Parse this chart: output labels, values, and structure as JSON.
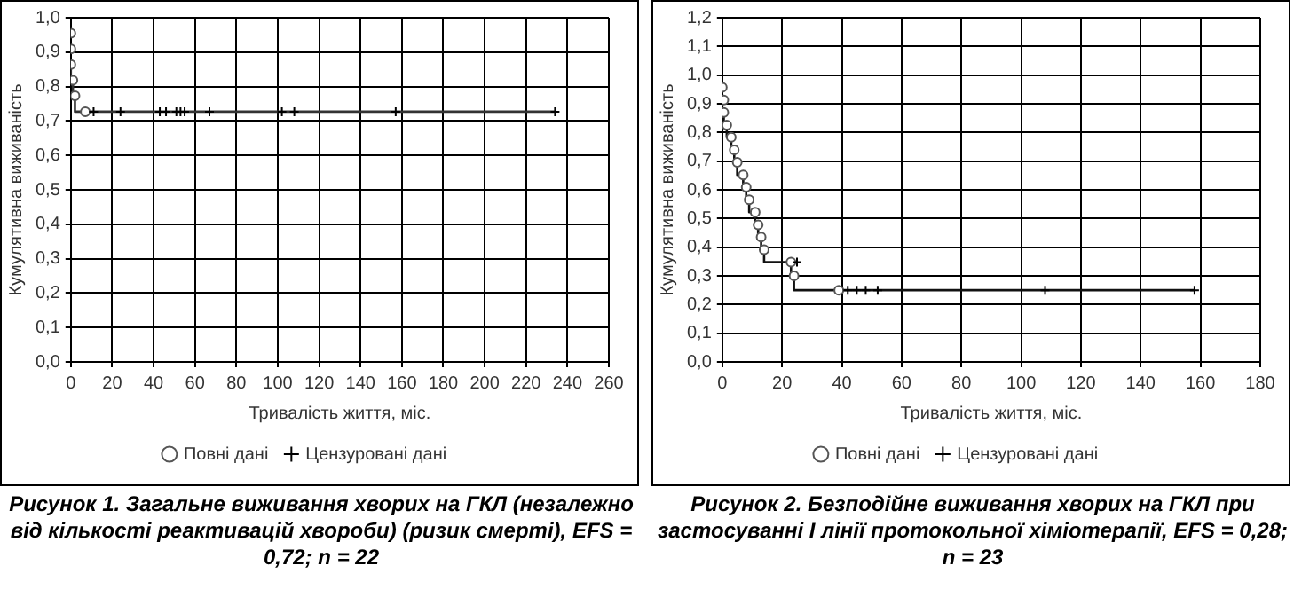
{
  "chart_data": [
    {
      "type": "step",
      "xlabel": "Тривалість життя, міс.",
      "ylabel": "Кумулятивна виживаність",
      "xlim": [
        0,
        260
      ],
      "xticks": [
        0,
        20,
        40,
        60,
        80,
        100,
        120,
        140,
        160,
        180,
        200,
        220,
        240,
        260
      ],
      "ylim": [
        0,
        1
      ],
      "yticks": [
        {
          "value": 0,
          "label": "0,0"
        },
        {
          "value": 0.1,
          "label": "0,1"
        },
        {
          "value": 0.2,
          "label": "0,2"
        },
        {
          "value": 0.3,
          "label": "0,3"
        },
        {
          "value": 0.4,
          "label": "0,4"
        },
        {
          "value": 0.5,
          "label": "0,5"
        },
        {
          "value": 0.6,
          "label": "0,6"
        },
        {
          "value": 0.7,
          "label": "0,7"
        },
        {
          "value": 0.8,
          "label": "0,8"
        },
        {
          "value": 0.9,
          "label": "0,9"
        },
        {
          "value": 1,
          "label": "1,0"
        }
      ],
      "grid": true,
      "legend": "bottom",
      "annotations": [
        "Рисунок 1. Загальне виживання хворих на ГКЛ (незалежно від кількості реактивацій хвороби) (ризик смерті), EFS = 0,72; n = 22"
      ],
      "series": [
        {
          "color": "#333333",
          "marker": "none",
          "x": [
            0,
            1,
            2,
            7,
            234
          ],
          "values": [
            0.864,
            0.818,
            0.773,
            0.727,
            0.727
          ]
        },
        {
          "type": "scatter",
          "name": "Повні дані",
          "color": "#555555",
          "marker": "circle",
          "x": [
            0,
            0,
            0,
            1,
            2,
            7
          ],
          "values": [
            0.955,
            0.909,
            0.864,
            0.818,
            0.773,
            0.727
          ]
        },
        {
          "type": "scatter",
          "name": "Цензуровані дані",
          "color": "#000000",
          "marker": "cross",
          "x": [
            11,
            24,
            43,
            46,
            51,
            53,
            55,
            67,
            102,
            108,
            157,
            234
          ],
          "values": [
            0.727,
            0.727,
            0.727,
            0.727,
            0.727,
            0.727,
            0.727,
            0.727,
            0.727,
            0.727,
            0.727,
            0.727
          ]
        }
      ]
    },
    {
      "type": "step",
      "xlabel": "Тривалість життя, міс.",
      "ylabel": "Кумулятивна виживаність",
      "xlim": [
        0,
        180
      ],
      "xticks": [
        0,
        20,
        40,
        60,
        80,
        100,
        120,
        140,
        160,
        180
      ],
      "ylim": [
        0,
        1.2
      ],
      "yticks": [
        {
          "value": 0,
          "label": "0,0"
        },
        {
          "value": 0.1,
          "label": "0,1"
        },
        {
          "value": 0.2,
          "label": "0,2"
        },
        {
          "value": 0.3,
          "label": "0,3"
        },
        {
          "value": 0.4,
          "label": "0,4"
        },
        {
          "value": 0.5,
          "label": "0,5"
        },
        {
          "value": 0.6,
          "label": "0,6"
        },
        {
          "value": 0.7,
          "label": "0,7"
        },
        {
          "value": 0.8,
          "label": "0,8"
        },
        {
          "value": 0.9,
          "label": "0,9"
        },
        {
          "value": 1,
          "label": "1,0"
        },
        {
          "value": 1.1,
          "label": "1,1"
        },
        {
          "value": 1.2,
          "label": "1,2"
        }
      ],
      "grid": true,
      "legend": "bottom",
      "annotations": [
        "Рисунок 2. Безподійне виживання хворих на ГКЛ при застосуванні І лінії протокольної хіміотерапії, EFS = 0,28; n = 23"
      ],
      "series": [
        {
          "color": "#111111",
          "marker": "none",
          "x": [
            0,
            0.5,
            1.5,
            3,
            4,
            5,
            7,
            8,
            9,
            11,
            12,
            13,
            14,
            23,
            24,
            39,
            158
          ],
          "values": [
            0.87,
            0.87,
            0.826,
            0.783,
            0.739,
            0.696,
            0.652,
            0.609,
            0.565,
            0.522,
            0.478,
            0.435,
            0.391,
            0.348,
            0.3,
            0.25,
            0.25
          ]
        },
        {
          "type": "scatter",
          "name": "Повні дані",
          "color": "#555555",
          "marker": "circle",
          "x": [
            0,
            0.5,
            0.5,
            1.5,
            3,
            4,
            5,
            7,
            8,
            9,
            11,
            12,
            13,
            14,
            23,
            24,
            39
          ],
          "values": [
            0.957,
            0.913,
            0.87,
            0.826,
            0.783,
            0.739,
            0.696,
            0.652,
            0.609,
            0.565,
            0.522,
            0.478,
            0.435,
            0.391,
            0.348,
            0.3,
            0.25
          ]
        },
        {
          "type": "scatter",
          "name": "Цензуровані дані",
          "color": "#000000",
          "marker": "cross",
          "x": [
            25,
            42,
            45,
            48,
            52,
            108,
            158
          ],
          "values": [
            0.348,
            0.25,
            0.25,
            0.25,
            0.25,
            0.25,
            0.25
          ]
        }
      ]
    }
  ]
}
